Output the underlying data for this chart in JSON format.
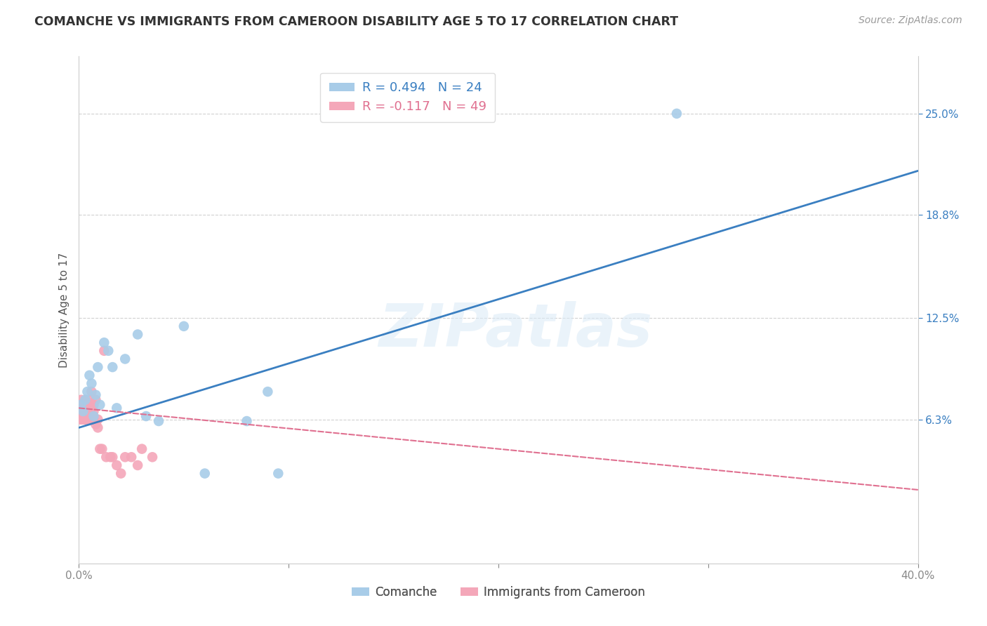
{
  "title": "COMANCHE VS IMMIGRANTS FROM CAMEROON DISABILITY AGE 5 TO 17 CORRELATION CHART",
  "source": "Source: ZipAtlas.com",
  "ylabel": "Disability Age 5 to 17",
  "xlim": [
    0.0,
    0.4
  ],
  "ylim": [
    -0.025,
    0.285
  ],
  "xticks": [
    0.0,
    0.1,
    0.2,
    0.3,
    0.4
  ],
  "xtick_labels": [
    "0.0%",
    "",
    "",
    "",
    "40.0%"
  ],
  "yticks": [
    0.063,
    0.125,
    0.188,
    0.25
  ],
  "ytick_labels": [
    "6.3%",
    "12.5%",
    "18.8%",
    "25.0%"
  ],
  "grid_color": "#cccccc",
  "bg_color": "#ffffff",
  "watermark_text": "ZIPatlas",
  "comanche_fill": "#a8cce8",
  "cameroon_fill": "#f4a7b9",
  "comanche_line_color": "#3a7fc1",
  "cameroon_line_color": "#e07090",
  "comanche_R": 0.494,
  "comanche_N": 24,
  "cameroon_R": -0.117,
  "cameroon_N": 49,
  "comanche_trend_x": [
    0.0,
    0.4
  ],
  "comanche_trend_y": [
    0.058,
    0.215
  ],
  "cameroon_trend_x": [
    0.0,
    0.4
  ],
  "cameroon_trend_y": [
    0.07,
    0.02
  ],
  "comanche_x": [
    0.001,
    0.002,
    0.003,
    0.004,
    0.005,
    0.006,
    0.007,
    0.008,
    0.009,
    0.01,
    0.012,
    0.014,
    0.016,
    0.018,
    0.022,
    0.028,
    0.032,
    0.038,
    0.05,
    0.06,
    0.08,
    0.09,
    0.095,
    0.285
  ],
  "comanche_y": [
    0.072,
    0.068,
    0.075,
    0.08,
    0.09,
    0.085,
    0.065,
    0.078,
    0.095,
    0.072,
    0.11,
    0.105,
    0.095,
    0.07,
    0.1,
    0.115,
    0.065,
    0.062,
    0.12,
    0.03,
    0.062,
    0.08,
    0.03,
    0.25
  ],
  "cameroon_x": [
    0.001,
    0.001,
    0.001,
    0.001,
    0.001,
    0.002,
    0.002,
    0.002,
    0.002,
    0.002,
    0.002,
    0.003,
    0.003,
    0.003,
    0.003,
    0.003,
    0.003,
    0.004,
    0.004,
    0.004,
    0.004,
    0.004,
    0.005,
    0.005,
    0.005,
    0.005,
    0.006,
    0.006,
    0.006,
    0.007,
    0.007,
    0.007,
    0.008,
    0.008,
    0.009,
    0.009,
    0.01,
    0.011,
    0.012,
    0.013,
    0.015,
    0.016,
    0.018,
    0.02,
    0.022,
    0.025,
    0.028,
    0.03,
    0.035
  ],
  "cameroon_y": [
    0.063,
    0.063,
    0.065,
    0.068,
    0.075,
    0.063,
    0.063,
    0.063,
    0.065,
    0.068,
    0.07,
    0.063,
    0.063,
    0.065,
    0.07,
    0.072,
    0.075,
    0.063,
    0.063,
    0.065,
    0.068,
    0.072,
    0.063,
    0.065,
    0.068,
    0.075,
    0.063,
    0.07,
    0.08,
    0.063,
    0.068,
    0.072,
    0.06,
    0.075,
    0.058,
    0.063,
    0.045,
    0.045,
    0.105,
    0.04,
    0.04,
    0.04,
    0.035,
    0.03,
    0.04,
    0.04,
    0.035,
    0.045,
    0.04
  ]
}
